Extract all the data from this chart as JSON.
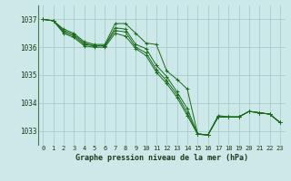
{
  "background_color": "#cce8e8",
  "plot_bg_color": "#cce8e8",
  "grid_color": "#aacccc",
  "line_color": "#1a6b1a",
  "xlabel": "Graphe pression niveau de la mer (hPa)",
  "ylim": [
    1032.5,
    1037.5
  ],
  "xlim": [
    -0.5,
    23.5
  ],
  "yticks": [
    1033,
    1034,
    1035,
    1036,
    1037
  ],
  "xticks": [
    0,
    1,
    2,
    3,
    4,
    5,
    6,
    7,
    8,
    9,
    10,
    11,
    12,
    13,
    14,
    15,
    16,
    17,
    18,
    19,
    20,
    21,
    22,
    23
  ],
  "series": [
    {
      "x": [
        0,
        1,
        2,
        3,
        4,
        5,
        6,
        7,
        8,
        9,
        10,
        11,
        12,
        13,
        14,
        15,
        16,
        17,
        18,
        19,
        20,
        21,
        22,
        23
      ],
      "y": [
        1037.0,
        1036.95,
        1036.65,
        1036.5,
        1036.2,
        1036.1,
        1036.1,
        1036.85,
        1036.85,
        1036.5,
        1036.15,
        1036.1,
        1035.15,
        1034.85,
        1034.5,
        1032.9,
        1032.85,
        1033.55,
        1033.5,
        1033.5,
        1033.7,
        1033.65,
        1033.6,
        1033.3
      ]
    },
    {
      "x": [
        0,
        1,
        2,
        3,
        4,
        5,
        6,
        7,
        8,
        9,
        10,
        11,
        12,
        13,
        14,
        15,
        16,
        17,
        18,
        19,
        20,
        21,
        22,
        23
      ],
      "y": [
        1037.0,
        1036.95,
        1036.6,
        1036.45,
        1036.15,
        1036.05,
        1036.05,
        1036.7,
        1036.65,
        1036.1,
        1035.95,
        1035.35,
        1034.95,
        1034.4,
        1033.8,
        1032.9,
        1032.85,
        1033.5,
        1033.5,
        1033.5,
        1033.7,
        1033.65,
        1033.6,
        1033.3
      ]
    },
    {
      "x": [
        0,
        1,
        2,
        3,
        4,
        5,
        6,
        7,
        8,
        9,
        10,
        11,
        12,
        13,
        14,
        15,
        16,
        17,
        18,
        19,
        20,
        21,
        22,
        23
      ],
      "y": [
        1037.0,
        1036.95,
        1036.55,
        1036.4,
        1036.1,
        1036.05,
        1036.05,
        1036.6,
        1036.55,
        1036.0,
        1035.8,
        1035.2,
        1034.8,
        1034.3,
        1033.65,
        1032.88,
        1032.85,
        1033.5,
        1033.5,
        1033.5,
        1033.7,
        1033.65,
        1033.6,
        1033.3
      ]
    },
    {
      "x": [
        0,
        1,
        2,
        3,
        4,
        5,
        6,
        7,
        8,
        9,
        10,
        11,
        12,
        13,
        14,
        15,
        16,
        17,
        18,
        19,
        20,
        21,
        22,
        23
      ],
      "y": [
        1037.0,
        1036.95,
        1036.5,
        1036.35,
        1036.05,
        1036.0,
        1036.0,
        1036.5,
        1036.4,
        1035.95,
        1035.7,
        1035.1,
        1034.7,
        1034.2,
        1033.55,
        1032.88,
        1032.85,
        1033.5,
        1033.5,
        1033.5,
        1033.7,
        1033.65,
        1033.6,
        1033.3
      ]
    }
  ]
}
